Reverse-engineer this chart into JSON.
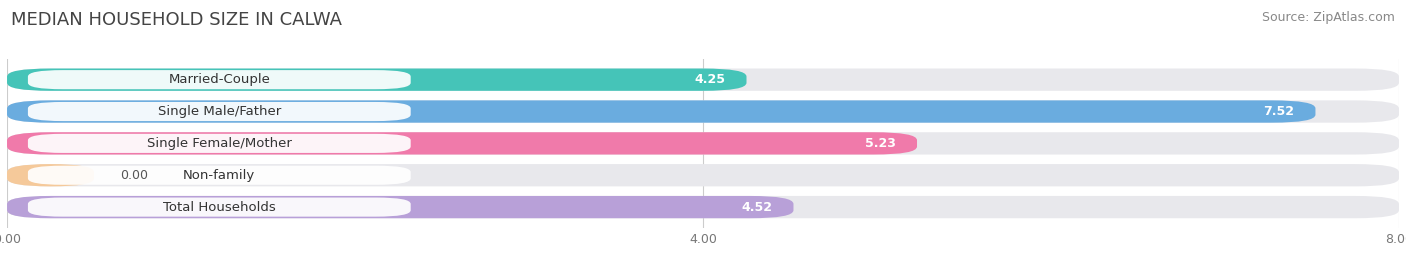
{
  "title": "MEDIAN HOUSEHOLD SIZE IN CALWA",
  "source": "Source: ZipAtlas.com",
  "categories": [
    "Married-Couple",
    "Single Male/Father",
    "Single Female/Mother",
    "Non-family",
    "Total Households"
  ],
  "values": [
    4.25,
    7.52,
    5.23,
    0.0,
    4.52
  ],
  "bar_colors": [
    "#45c4b8",
    "#6aacdf",
    "#f07aaa",
    "#f5c99a",
    "#b8a0d8"
  ],
  "bar_bg_color": "#e8e8ec",
  "xlim": [
    0,
    8.0
  ],
  "xticks": [
    0.0,
    4.0,
    8.0
  ],
  "xtick_labels": [
    "0.00",
    "4.00",
    "8.00"
  ],
  "title_fontsize": 13,
  "source_fontsize": 9,
  "label_fontsize": 9.5,
  "value_fontsize": 9,
  "bg_color": "#ffffff",
  "label_bg_color": "#ffffff",
  "grid_color": "#cccccc"
}
